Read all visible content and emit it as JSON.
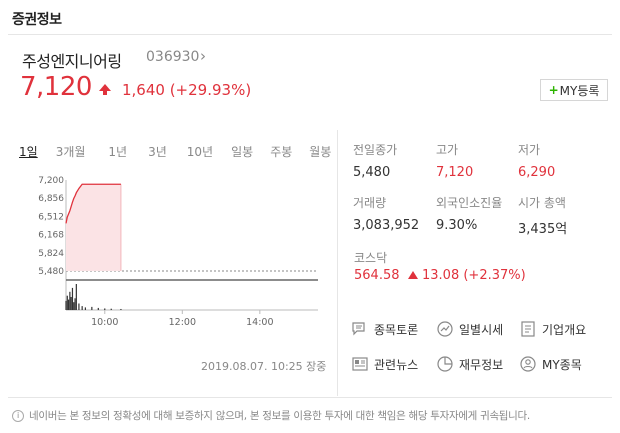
{
  "section_title": "증권정보",
  "stock": {
    "name": "주성엔지니어링",
    "code": "036930",
    "price": "7,120",
    "change": "1,640 (+29.93%)",
    "my_button": "MY등록"
  },
  "periods": [
    "1일",
    "3개월",
    "1년",
    "3년",
    "10년",
    "일봉",
    "주봉",
    "월봉"
  ],
  "active_period": "1일",
  "chart_data": {
    "type": "line",
    "y_ticks": [
      "7,200",
      "6,856",
      "6,512",
      "6,168",
      "5,824",
      "5,480"
    ],
    "ylim": [
      5480,
      7200
    ],
    "x_ticks": [
      "10:00",
      "12:00",
      "14:00"
    ],
    "x": [
      "09:00",
      "09:02",
      "09:04",
      "09:06",
      "09:08",
      "09:10",
      "09:12",
      "09:14",
      "09:16",
      "09:20",
      "09:25",
      "09:30",
      "09:40",
      "09:50",
      "10:00",
      "10:10",
      "10:25"
    ],
    "values": [
      6380,
      6500,
      6560,
      6620,
      6700,
      6780,
      6850,
      6900,
      6960,
      7040,
      7120,
      7120,
      7120,
      7120,
      7120,
      7120,
      7120
    ],
    "volume": [
      0.35,
      0.55,
      0.4,
      0.7,
      0.5,
      0.85,
      0.3,
      0.45,
      1.0,
      0.25,
      0.15,
      0.1,
      0.12,
      0.08,
      0.06,
      0.05,
      0.04
    ],
    "prev_close": 5480,
    "colors": {
      "line": "#e0323c",
      "fill": "#fbe3e5",
      "volume": "#333333"
    }
  },
  "chart_date": "2019.08.07. 10:25 장중",
  "stats": [
    {
      "label": "전일종가",
      "value": "5,480",
      "red": false
    },
    {
      "label": "고가",
      "value": "7,120",
      "red": true
    },
    {
      "label": "저가",
      "value": "6,290",
      "red": true
    },
    {
      "label": "거래량",
      "value": "3,083,952",
      "red": false
    },
    {
      "label": "외국인소진율",
      "value": "9.30%",
      "red": false
    },
    {
      "label": "시가 총액",
      "value": "3,435억",
      "red": false
    }
  ],
  "kospi": {
    "label": "코스닥",
    "value": "564.58",
    "change": "13.08 (+2.37%)"
  },
  "links": [
    {
      "label": "종목토론",
      "icon": "discussion-icon"
    },
    {
      "label": "일별시세",
      "icon": "daily-trend-icon"
    },
    {
      "label": "기업개요",
      "icon": "company-doc-icon"
    },
    {
      "label": "관련뉴스",
      "icon": "news-icon"
    },
    {
      "label": "재무정보",
      "icon": "finance-icon"
    },
    {
      "label": "MY종목",
      "icon": "my-stock-icon"
    }
  ],
  "notice": "네이버는 본 정보의 정확성에 대해 보증하지 않으며, 본 정보를 이용한 투자에 대한 책임은 해당 투자자에게 귀속됩니다."
}
